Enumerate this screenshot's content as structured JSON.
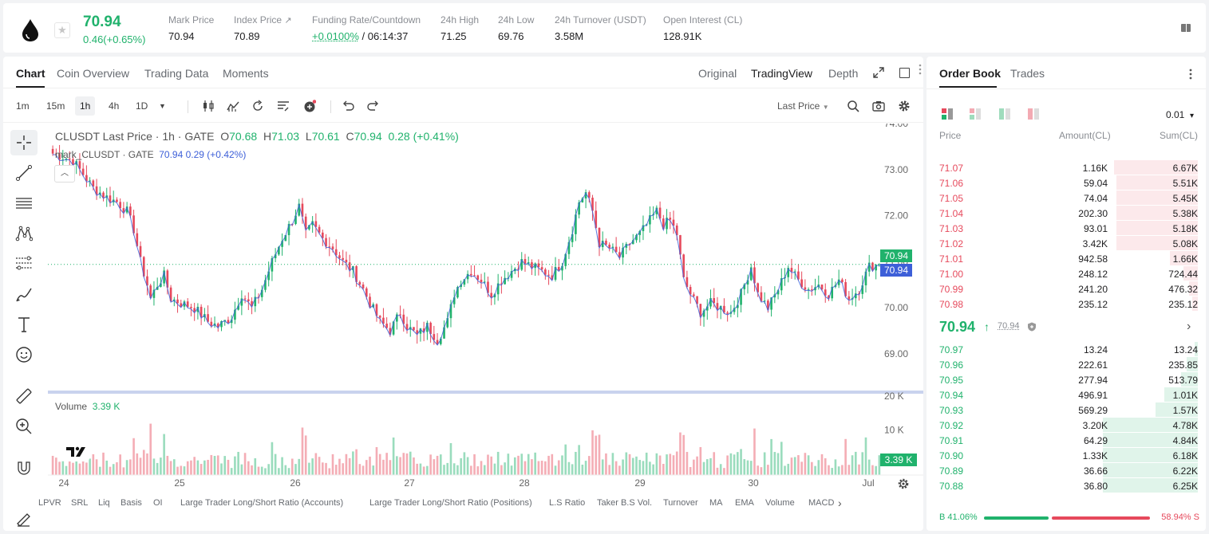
{
  "ticker": {
    "last_price": "70.94",
    "change": "0.46(+0.65%)",
    "mark_price_label": "Mark Price",
    "mark_price": "70.94",
    "index_price_label": "Index Price",
    "index_price": "70.89",
    "index_arrow": "↗",
    "funding_label": "Funding Rate/Countdown",
    "funding_rate": "+0.0100%",
    "countdown": "/ 06:14:37",
    "high_label": "24h High",
    "high": "71.25",
    "low_label": "24h Low",
    "low": "69.76",
    "turnover_label": "24h Turnover (USDT)",
    "turnover": "3.58M",
    "oi_label": "Open Interest (CL)",
    "oi": "128.91K",
    "star": "★"
  },
  "chart_tabs": [
    "Chart",
    "Coin Overview",
    "Trading Data",
    "Moments"
  ],
  "view_modes": [
    "Original",
    "TradingView",
    "Depth"
  ],
  "intervals": [
    "1m",
    "15m",
    "1h",
    "4h",
    "1D"
  ],
  "interval_caret": "▼",
  "price_source": "Last Price",
  "legend": {
    "symbol": "CLUSDT Last Price · 1h · GATE",
    "o_label": "O",
    "o": "70.68",
    "h_label": "H",
    "h": "71.03",
    "l_label": "L",
    "l": "70.61",
    "c_label": "C",
    "c": "70.94",
    "chg": "0.28 (+0.41%)",
    "mark_name": "mark_CLUSDT · GATE",
    "mark_val": "70.94 0.29 (+0.42%)",
    "collapse": "︿"
  },
  "volume_legend": {
    "label": "Volume",
    "value": "3.39 K"
  },
  "price_tags": {
    "last": "70.94",
    "mark": "70.94",
    "volume": "3.39 K"
  },
  "indicators": [
    "LPVR",
    "SRL",
    "Liq",
    "Basis",
    "OI",
    "Large Trader Long/Short Ratio (Accounts)",
    "Large Trader Long/Short Ratio (Positions)",
    "L.S Ratio",
    "Taker B.S Vol.",
    "Turnover",
    "MA",
    "EMA",
    "Volume",
    "MACD"
  ],
  "indicator_chevron": "›",
  "chart_data": {
    "type": "candlestick",
    "y_ticks": [
      "74.00",
      "73.00",
      "72.00",
      "71.00",
      "70.00",
      "69.00"
    ],
    "ylim": [
      68.2,
      74.0
    ],
    "volume_ticks": [
      "20 K",
      "10 K"
    ],
    "volume_max": 20000,
    "x_ticks": [
      "24",
      "25",
      "26",
      "27",
      "28",
      "29",
      "30",
      "Jul"
    ],
    "current_price": 70.94,
    "anchors": [
      [
        0,
        73.35
      ],
      [
        6,
        73.2
      ],
      [
        9,
        72.9
      ],
      [
        12,
        72.6
      ],
      [
        16,
        72.4
      ],
      [
        19,
        72.3
      ],
      [
        22,
        72.1
      ],
      [
        24,
        71.7
      ],
      [
        26,
        71.0
      ],
      [
        28,
        70.5
      ],
      [
        29,
        70.2
      ],
      [
        31,
        70.5
      ],
      [
        33,
        70.7
      ],
      [
        35,
        70.2
      ],
      [
        38,
        70.1
      ],
      [
        42,
        70.0
      ],
      [
        46,
        69.7
      ],
      [
        49,
        69.6
      ],
      [
        53,
        69.8
      ],
      [
        56,
        70.3
      ],
      [
        59,
        70.0
      ],
      [
        62,
        70.4
      ],
      [
        65,
        71.0
      ],
      [
        68,
        71.5
      ],
      [
        71,
        71.9
      ],
      [
        73,
        72.2
      ],
      [
        75,
        71.6
      ],
      [
        77,
        71.8
      ],
      [
        80,
        71.5
      ],
      [
        83,
        71.3
      ],
      [
        86,
        71.0
      ],
      [
        89,
        70.8
      ],
      [
        92,
        70.4
      ],
      [
        94,
        70.1
      ],
      [
        97,
        69.7
      ],
      [
        100,
        69.5
      ],
      [
        103,
        69.9
      ],
      [
        105,
        69.6
      ],
      [
        108,
        69.4
      ],
      [
        111,
        69.6
      ],
      [
        114,
        69.3
      ],
      [
        117,
        69.7
      ],
      [
        119,
        70.3
      ],
      [
        121,
        70.6
      ],
      [
        124,
        70.8
      ],
      [
        127,
        70.6
      ],
      [
        130,
        70.3
      ],
      [
        133,
        70.6
      ],
      [
        136,
        70.8
      ],
      [
        139,
        71.0
      ],
      [
        142,
        70.9
      ],
      [
        145,
        70.8
      ],
      [
        148,
        70.7
      ],
      [
        151,
        71.0
      ],
      [
        154,
        71.7
      ],
      [
        156,
        72.3
      ],
      [
        158,
        72.5
      ],
      [
        160,
        72.1
      ],
      [
        162,
        71.4
      ],
      [
        165,
        71.3
      ],
      [
        168,
        71.1
      ],
      [
        171,
        71.4
      ],
      [
        174,
        71.6
      ],
      [
        177,
        71.9
      ],
      [
        179,
        72.1
      ],
      [
        181,
        71.8
      ],
      [
        183,
        71.9
      ],
      [
        185,
        71.6
      ],
      [
        187,
        70.6
      ],
      [
        189,
        70.3
      ],
      [
        192,
        69.9
      ],
      [
        195,
        70.1
      ],
      [
        198,
        70.0
      ],
      [
        201,
        69.9
      ],
      [
        204,
        70.3
      ],
      [
        207,
        70.9
      ],
      [
        209,
        70.3
      ],
      [
        212,
        70.0
      ],
      [
        215,
        70.4
      ],
      [
        218,
        70.9
      ],
      [
        221,
        70.6
      ],
      [
        224,
        70.4
      ],
      [
        227,
        70.5
      ],
      [
        230,
        70.3
      ],
      [
        233,
        70.6
      ],
      [
        236,
        70.2
      ],
      [
        239,
        70.4
      ],
      [
        242,
        70.9
      ],
      [
        245,
        70.94
      ]
    ]
  },
  "orderbook": {
    "tabs": [
      "Order Book",
      "Trades"
    ],
    "precision": "0.01",
    "precision_caret": "▾",
    "col_price": "Price",
    "col_amount": "Amount(CL)",
    "col_sum": "Sum(CL)",
    "asks": [
      {
        "price": "71.07",
        "amount": "1.16K",
        "sum": "6.67K",
        "depth": 0.3
      },
      {
        "price": "71.06",
        "amount": "59.04",
        "sum": "5.51K",
        "depth": 0.29
      },
      {
        "price": "71.05",
        "amount": "74.04",
        "sum": "5.45K",
        "depth": 0.29
      },
      {
        "price": "71.04",
        "amount": "202.30",
        "sum": "5.38K",
        "depth": 0.29
      },
      {
        "price": "71.03",
        "amount": "93.01",
        "sum": "5.18K",
        "depth": 0.29
      },
      {
        "price": "71.02",
        "amount": "3.42K",
        "sum": "5.08K",
        "depth": 0.29
      },
      {
        "price": "71.01",
        "amount": "942.58",
        "sum": "1.66K",
        "depth": 0.1
      },
      {
        "price": "71.00",
        "amount": "248.12",
        "sum": "724.44",
        "depth": 0.05
      },
      {
        "price": "70.99",
        "amount": "241.20",
        "sum": "476.32",
        "depth": 0.03
      },
      {
        "price": "70.98",
        "amount": "235.12",
        "sum": "235.12",
        "depth": 0.02
      }
    ],
    "mid_price": "70.94",
    "mid_arrow": "↑",
    "mid_mark": "70.94",
    "mid_chevron": "›",
    "bids": [
      {
        "price": "70.97",
        "amount": "13.24",
        "sum": "13.24",
        "depth": 0.01
      },
      {
        "price": "70.96",
        "amount": "222.61",
        "sum": "235.85",
        "depth": 0.04
      },
      {
        "price": "70.95",
        "amount": "277.94",
        "sum": "513.79",
        "depth": 0.06
      },
      {
        "price": "70.94",
        "amount": "496.91",
        "sum": "1.01K",
        "depth": 0.12
      },
      {
        "price": "70.93",
        "amount": "569.29",
        "sum": "1.57K",
        "depth": 0.15
      },
      {
        "price": "70.92",
        "amount": "3.20K",
        "sum": "4.78K",
        "depth": 0.34
      },
      {
        "price": "70.91",
        "amount": "64.29",
        "sum": "4.84K",
        "depth": 0.34
      },
      {
        "price": "70.90",
        "amount": "1.33K",
        "sum": "6.18K",
        "depth": 0.34
      },
      {
        "price": "70.89",
        "amount": "36.66",
        "sum": "6.22K",
        "depth": 0.34
      },
      {
        "price": "70.88",
        "amount": "36.80",
        "sum": "6.25K",
        "depth": 0.34
      }
    ],
    "buy_ratio": "41.06%",
    "sell_ratio": "58.94%",
    "buy_ratio_value": 41.06,
    "b_label": "B",
    "s_label": "S"
  },
  "colors": {
    "up": "#20b26c",
    "down": "#e6495c",
    "mark_line": "#3d5fd8"
  }
}
